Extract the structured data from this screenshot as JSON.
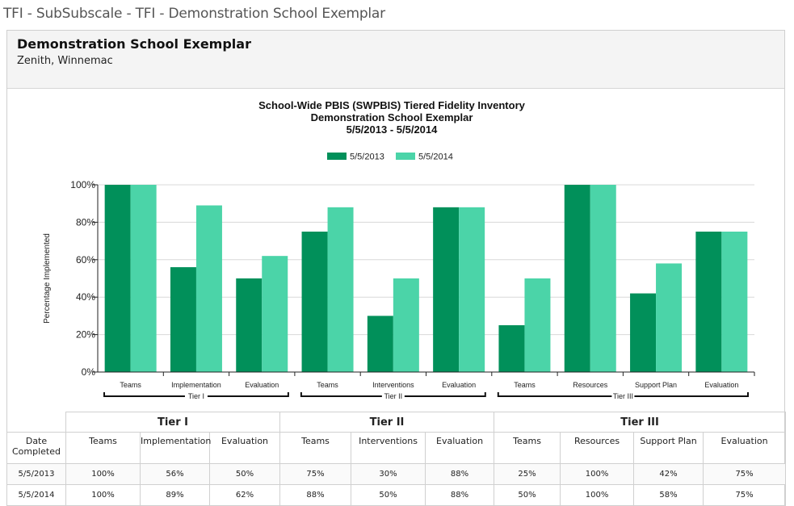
{
  "page": {
    "title": "TFI - SubSubscale - TFI - Demonstration School Exemplar"
  },
  "header": {
    "school": "Demonstration School Exemplar",
    "location": "Zenith, Winnemac"
  },
  "colors": {
    "series1": "#01905a",
    "series2": "#4bd4a8",
    "grid": "#d8d8d8",
    "axis": "#222222"
  },
  "chart_data": {
    "type": "bar",
    "title": [
      "School-Wide PBIS (SWPBIS) Tiered Fidelity Inventory",
      "Demonstration School Exemplar",
      "5/5/2013 - 5/5/2014"
    ],
    "ylabel": "Percentage Implemented",
    "ylim": [
      0,
      100
    ],
    "yticks": [
      "0%",
      "20%",
      "40%",
      "60%",
      "80%",
      "100%"
    ],
    "legend_position": "top-center",
    "grid": true,
    "categories": [
      "Teams",
      "Implementation",
      "Evaluation",
      "Teams",
      "Interventions",
      "Evaluation",
      "Teams",
      "Resources",
      "Support Plan",
      "Evaluation"
    ],
    "groups": [
      {
        "label": "Tier I",
        "count": 3
      },
      {
        "label": "Tier II",
        "count": 3
      },
      {
        "label": "Tier III",
        "count": 4
      }
    ],
    "series": [
      {
        "name": "5/5/2013",
        "values": [
          100,
          56,
          50,
          75,
          30,
          88,
          25,
          100,
          42,
          75
        ]
      },
      {
        "name": "5/5/2014",
        "values": [
          100,
          89,
          62,
          88,
          50,
          88,
          50,
          100,
          58,
          75
        ]
      }
    ]
  },
  "table": {
    "tiers": [
      "Tier I",
      "Tier II",
      "Tier III"
    ],
    "date_header": "Date Completed",
    "columns": [
      "Teams",
      "Implementation",
      "Evaluation",
      "Teams",
      "Interventions",
      "Evaluation",
      "Teams",
      "Resources",
      "Support Plan",
      "Evaluation"
    ],
    "rows": [
      {
        "date": "5/5/2013",
        "values": [
          "100%",
          "56%",
          "50%",
          "75%",
          "30%",
          "88%",
          "25%",
          "100%",
          "42%",
          "75%"
        ]
      },
      {
        "date": "5/5/2014",
        "values": [
          "100%",
          "89%",
          "62%",
          "88%",
          "50%",
          "88%",
          "50%",
          "100%",
          "58%",
          "75%"
        ]
      }
    ]
  }
}
